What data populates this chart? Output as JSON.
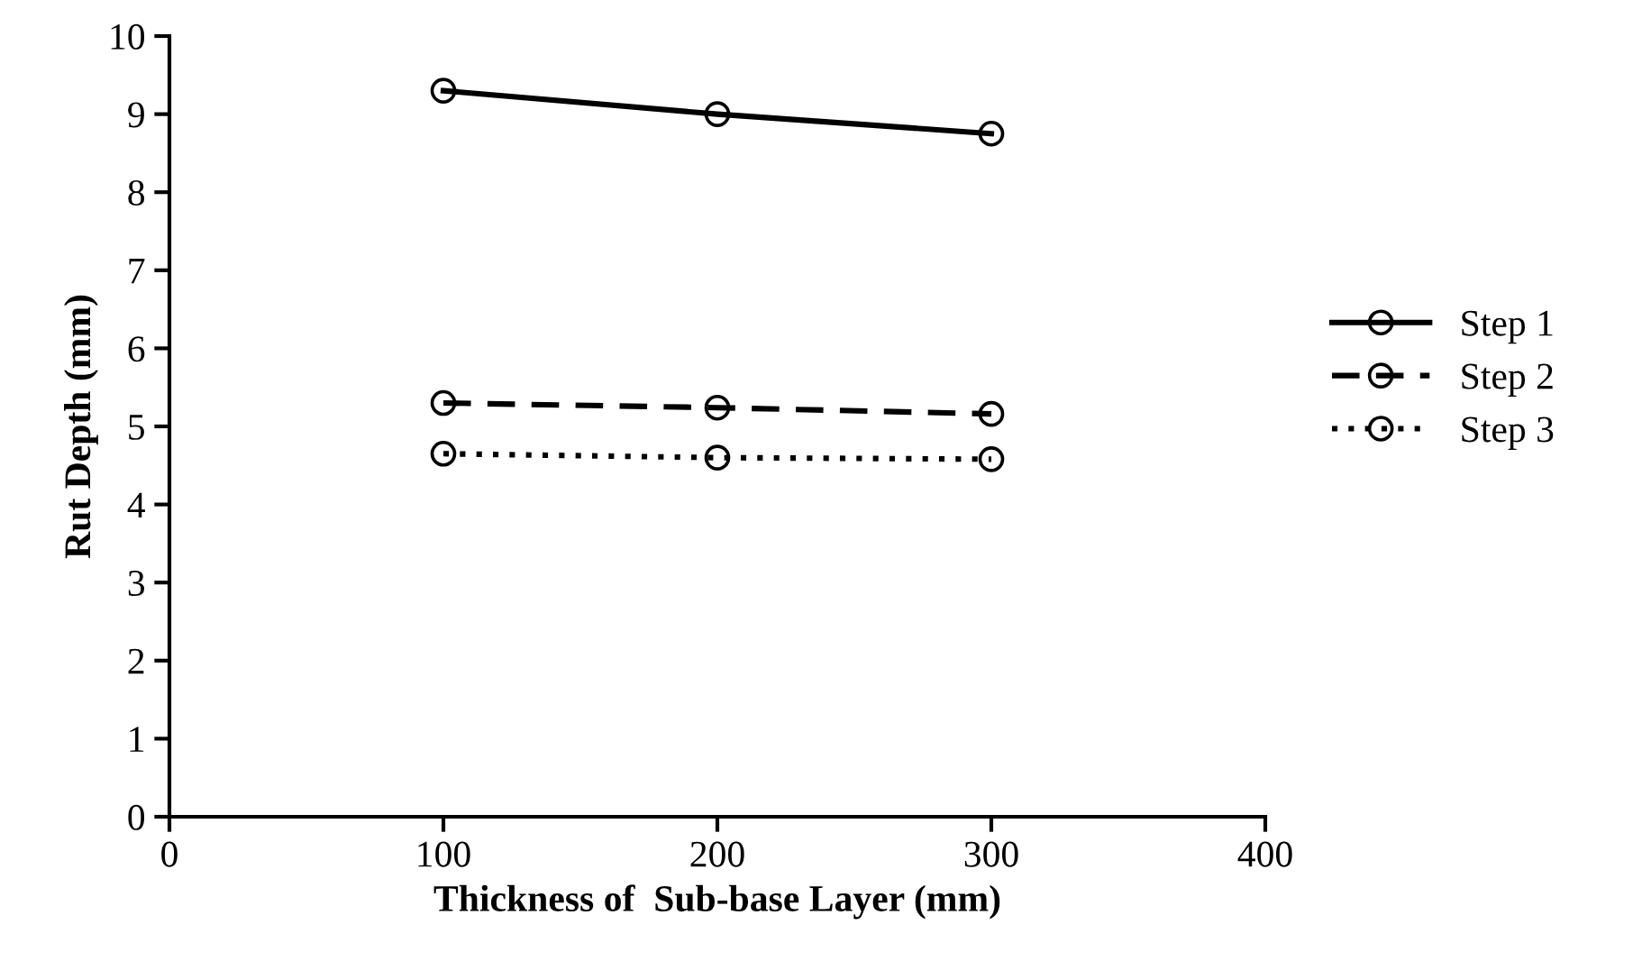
{
  "chart_data": {
    "type": "line",
    "xlabel": "Thickness of  Sub-base Layer (mm)",
    "ylabel": "Rut Depth (mm)",
    "x": [
      100,
      200,
      300
    ],
    "series": [
      {
        "name": "Step 1",
        "color": "#000000",
        "line_style": "solid",
        "values": [
          9.3,
          9.0,
          8.75
        ]
      },
      {
        "name": "Step 2",
        "color": "#000000",
        "line_style": "dashed",
        "values": [
          5.3,
          5.24,
          5.16
        ]
      },
      {
        "name": "Step 3",
        "color": "#000000",
        "line_style": "dotted",
        "values": [
          4.65,
          4.6,
          4.58
        ]
      }
    ],
    "xlim": [
      0,
      400
    ],
    "xticks": [
      0,
      100,
      200,
      300,
      400
    ],
    "ylim": [
      0,
      10
    ],
    "yticks": [
      0,
      1,
      2,
      3,
      4,
      5,
      6,
      7,
      8,
      9,
      10
    ],
    "marker": "circle",
    "grid": false,
    "legend": "right"
  }
}
